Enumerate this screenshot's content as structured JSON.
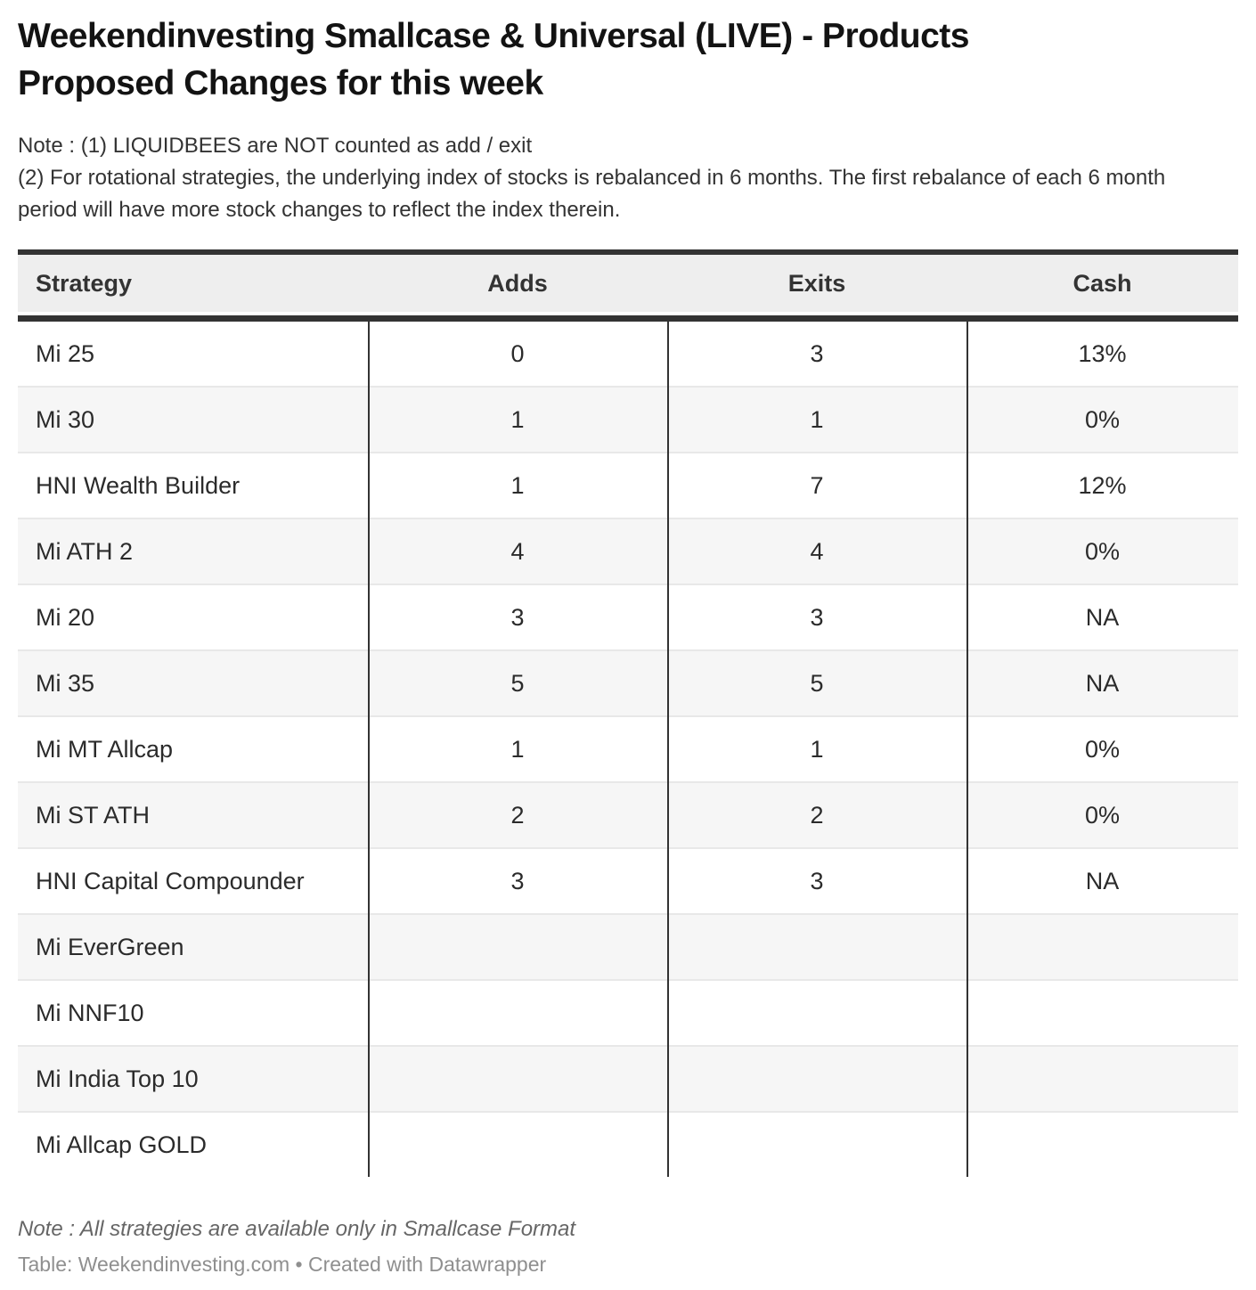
{
  "title": "Weekendinvesting Smallcase & Universal (LIVE) - Products Proposed Changes for this week",
  "notes": [
    "Note : (1) LIQUIDBEES are NOT counted as add / exit",
    "(2) For rotational strategies, the underlying index of stocks is rebalanced in 6 months. The first rebalance of each 6 month period will have more stock changes to reflect the index therein."
  ],
  "chart_data": {
    "type": "table",
    "title": "Weekendinvesting Smallcase & Universal (LIVE) - Products Proposed Changes for this week",
    "columns": [
      "Strategy",
      "Adds",
      "Exits",
      "Cash"
    ],
    "rows": [
      {
        "strategy": "Mi 25",
        "adds": "0",
        "exits": "3",
        "cash": "13%"
      },
      {
        "strategy": "Mi 30",
        "adds": "1",
        "exits": "1",
        "cash": "0%"
      },
      {
        "strategy": "HNI Wealth Builder",
        "adds": "1",
        "exits": "7",
        "cash": "12%"
      },
      {
        "strategy": "Mi ATH 2",
        "adds": "4",
        "exits": "4",
        "cash": "0%"
      },
      {
        "strategy": "Mi 20",
        "adds": "3",
        "exits": "3",
        "cash": "NA"
      },
      {
        "strategy": "Mi 35",
        "adds": "5",
        "exits": "5",
        "cash": "NA"
      },
      {
        "strategy": "Mi MT Allcap",
        "adds": "1",
        "exits": "1",
        "cash": "0%"
      },
      {
        "strategy": "Mi ST ATH",
        "adds": "2",
        "exits": "2",
        "cash": "0%"
      },
      {
        "strategy": "HNI Capital Compounder",
        "adds": "3",
        "exits": "3",
        "cash": "NA"
      },
      {
        "strategy": "Mi EverGreen",
        "adds": "",
        "exits": "",
        "cash": ""
      },
      {
        "strategy": "Mi NNF10",
        "adds": "",
        "exits": "",
        "cash": ""
      },
      {
        "strategy": "Mi India Top 10",
        "adds": "",
        "exits": "",
        "cash": ""
      },
      {
        "strategy": "Mi Allcap GOLD",
        "adds": "",
        "exits": "",
        "cash": ""
      }
    ],
    "layout_hints": {
      "zebra_striping": true,
      "strategy_align": "left",
      "value_align": "center"
    }
  },
  "footer": {
    "note": "Note : All strategies are available only in Smallcase Format",
    "credit": "Table: Weekendinvesting.com • Created with Datawrapper"
  },
  "colors": {
    "header_bg": "#eeeeee",
    "row_alt_bg": "#f6f6f6",
    "border_dark": "#333333",
    "row_divider": "#e8e8e8",
    "text": "#2b2b2b",
    "footnote_text": "#666666",
    "credit_text": "#8f8f8f"
  }
}
